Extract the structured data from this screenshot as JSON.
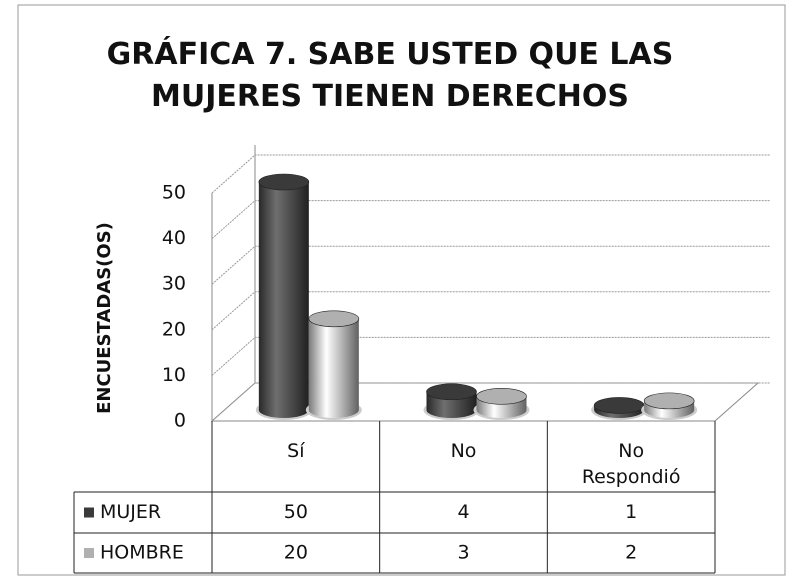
{
  "chart_data": {
    "type": "bar3d",
    "title": "GRÁFICA 7. SABE USTED QUE LAS MUJERES TIENEN DERECHOS",
    "y_label": "ENCUESTADAS(OS)",
    "categories": [
      "Sí",
      "No",
      "No Respondió"
    ],
    "series": [
      {
        "name": "MUJER",
        "color": "#3a3a3a",
        "values": [
          50,
          4,
          1
        ]
      },
      {
        "name": "HOMBRE",
        "color": "#b0b0b0",
        "values": [
          20,
          3,
          2
        ]
      }
    ],
    "ylim": [
      0,
      50
    ],
    "yticks": [
      0,
      10,
      20,
      30,
      40,
      50
    ],
    "grid": true,
    "data_table": true
  }
}
